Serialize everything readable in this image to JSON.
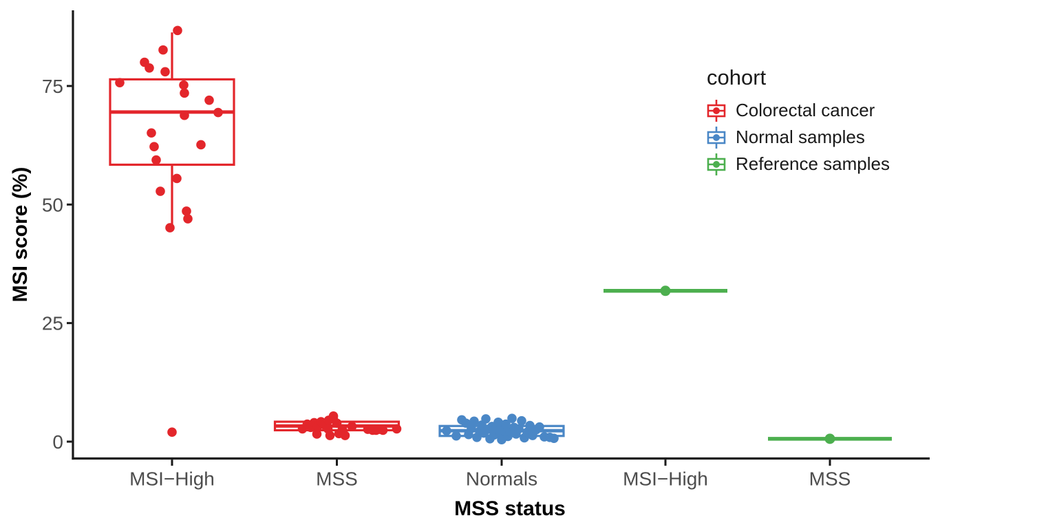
{
  "chart_data": {
    "type": "boxplot-jitter",
    "xlabel": "MSS status",
    "ylabel": "MSI score (%)",
    "background": "#ffffff",
    "axis_color": "#1a1a1a",
    "tick_label_color": "#4d4d4d",
    "ylim": [
      -3.5,
      91
    ],
    "y_ticks": [
      {
        "label": "0",
        "value": 0
      },
      {
        "label": "25",
        "value": 25
      },
      {
        "label": "50",
        "value": 50
      },
      {
        "label": "75",
        "value": 75
      }
    ],
    "legend": {
      "title": "cohort",
      "position": "inside-top-right",
      "items": [
        {
          "label": "Colorectal cancer",
          "color": "#E3262B"
        },
        {
          "label": "Normal samples",
          "color": "#4A87C6"
        },
        {
          "label": "Reference samples",
          "color": "#4CAF4E"
        }
      ]
    },
    "groups": [
      {
        "x_label": "MSI−High",
        "cohort": "Colorectal cancer",
        "color": "#E3262B",
        "degenerate": false,
        "box": {
          "whisker_low": 45.2,
          "q1": 58.4,
          "median": 69.5,
          "q3": 76.4,
          "whisker_high": 86.3
        },
        "points": [
          [
            8,
            86.7
          ],
          [
            -13,
            82.6
          ],
          [
            -40,
            80.0
          ],
          [
            -33,
            78.8
          ],
          [
            -10,
            78.0
          ],
          [
            -76,
            75.7
          ],
          [
            17,
            75.2
          ],
          [
            18,
            73.5
          ],
          [
            54,
            72.0
          ],
          [
            67,
            69.4
          ],
          [
            18,
            68.8
          ],
          [
            -30,
            65.1
          ],
          [
            42,
            62.6
          ],
          [
            -26,
            62.2
          ],
          [
            -23,
            59.4
          ],
          [
            7,
            55.5
          ],
          [
            -17,
            52.8
          ],
          [
            21,
            48.6
          ],
          [
            23,
            47.0
          ],
          [
            -3,
            45.1
          ],
          [
            0,
            2.0
          ]
        ]
      },
      {
        "x_label": "MSS",
        "cohort": "Colorectal cancer",
        "color": "#E3262B",
        "degenerate": false,
        "box": {
          "whisker_low": 1.3,
          "q1": 2.4,
          "median": 3.3,
          "q3": 4.2,
          "whisker_high": 5.4
        },
        "points": [
          [
            -50,
            2.7
          ],
          [
            -43,
            3.7
          ],
          [
            -38,
            3.0
          ],
          [
            -33,
            4.0
          ],
          [
            -29,
            1.6
          ],
          [
            -28,
            3.2
          ],
          [
            -23,
            4.2
          ],
          [
            -18,
            3.5
          ],
          [
            -13,
            2.7
          ],
          [
            -12,
            4.5
          ],
          [
            -10,
            1.3
          ],
          [
            -5,
            5.4
          ],
          [
            0,
            3.9
          ],
          [
            3,
            1.7
          ],
          [
            8,
            2.7
          ],
          [
            12,
            1.3
          ],
          [
            22,
            3.2
          ],
          [
            45,
            2.6
          ],
          [
            52,
            2.4
          ],
          [
            57,
            2.4
          ],
          [
            62,
            2.6
          ],
          [
            67,
            2.4
          ],
          [
            87,
            2.7
          ]
        ]
      },
      {
        "x_label": "Normals",
        "cohort": "Normal samples",
        "color": "#4A87C6",
        "degenerate": false,
        "box": {
          "whisker_low": 0.2,
          "q1": 1.2,
          "median": 2.3,
          "q3": 3.3,
          "whisker_high": 4.5
        },
        "points": [
          [
            -80,
            2.3
          ],
          [
            -66,
            1.2
          ],
          [
            -58,
            4.6
          ],
          [
            -52,
            3.9
          ],
          [
            -48,
            1.5
          ],
          [
            -44,
            2.8
          ],
          [
            -40,
            4.3
          ],
          [
            -36,
            0.9
          ],
          [
            -32,
            2.2
          ],
          [
            -29,
            3.5
          ],
          [
            -26,
            1.8
          ],
          [
            -23,
            4.8
          ],
          [
            -20,
            2.6
          ],
          [
            -17,
            0.6
          ],
          [
            -14,
            3.2
          ],
          [
            -11,
            1.4
          ],
          [
            -8,
            2.9
          ],
          [
            -5,
            4.1
          ],
          [
            -2,
            1.9
          ],
          [
            0,
            0.4
          ],
          [
            3,
            2.4
          ],
          [
            6,
            3.7
          ],
          [
            9,
            1.1
          ],
          [
            12,
            2.1
          ],
          [
            15,
            4.9
          ],
          [
            18,
            3.0
          ],
          [
            21,
            1.6
          ],
          [
            25,
            2.7
          ],
          [
            29,
            4.4
          ],
          [
            33,
            0.8
          ],
          [
            37,
            2.0
          ],
          [
            41,
            3.4
          ],
          [
            45,
            1.3
          ],
          [
            50,
            2.5
          ],
          [
            55,
            3.1
          ],
          [
            62,
            1.0
          ],
          [
            70,
            0.9
          ],
          [
            76,
            0.7
          ]
        ]
      },
      {
        "x_label": "MSI−High",
        "cohort": "Reference samples",
        "color": "#4CAF4E",
        "degenerate": true,
        "value": 31.8,
        "box": {
          "whisker_low": 31.8,
          "q1": 31.8,
          "median": 31.8,
          "q3": 31.8,
          "whisker_high": 31.8
        },
        "points": [
          [
            0,
            31.8
          ]
        ]
      },
      {
        "x_label": "MSS",
        "cohort": "Reference samples",
        "color": "#4CAF4E",
        "degenerate": true,
        "value": 0.6,
        "box": {
          "whisker_low": 0.6,
          "q1": 0.6,
          "median": 0.6,
          "q3": 0.6,
          "whisker_high": 0.6
        },
        "points": [
          [
            0,
            0.6
          ]
        ]
      }
    ]
  }
}
